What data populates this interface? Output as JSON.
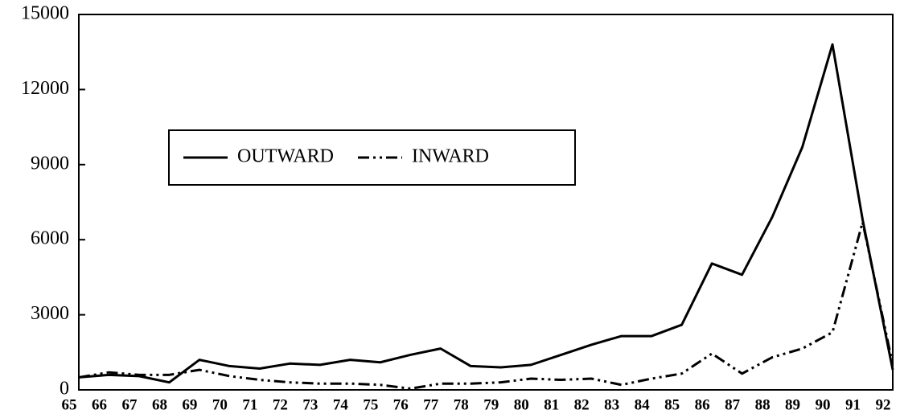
{
  "chart_data": {
    "type": "line",
    "categories": [
      "65",
      "66",
      "67",
      "68",
      "69",
      "70",
      "71",
      "72",
      "73",
      "74",
      "75",
      "76",
      "77",
      "78",
      "79",
      "80",
      "81",
      "82",
      "83",
      "84",
      "85",
      "86",
      "87",
      "88",
      "89",
      "90",
      "91",
      "92"
    ],
    "series": [
      {
        "name": "OUTWARD",
        "color": "#000000",
        "linestyle": "solid",
        "values": [
          500,
          600,
          550,
          300,
          1200,
          950,
          850,
          1050,
          1000,
          1200,
          1100,
          1400,
          1650,
          950,
          900,
          1000,
          1400,
          1800,
          2150,
          2150,
          2600,
          5050,
          4600,
          6900,
          9700,
          13800,
          6800,
          800
        ]
      },
      {
        "name": "INWARD",
        "color": "#000000",
        "linestyle": "dashdotdot",
        "values": [
          500,
          700,
          600,
          600,
          800,
          550,
          400,
          300,
          250,
          250,
          200,
          50,
          250,
          250,
          300,
          450,
          400,
          450,
          200,
          450,
          650,
          1450,
          650,
          1300,
          1650,
          2300,
          6700,
          1000
        ]
      }
    ],
    "ylim": [
      0,
      15000
    ],
    "yticks": [
      0,
      3000,
      6000,
      9000,
      12000,
      15000
    ],
    "grid": false
  }
}
